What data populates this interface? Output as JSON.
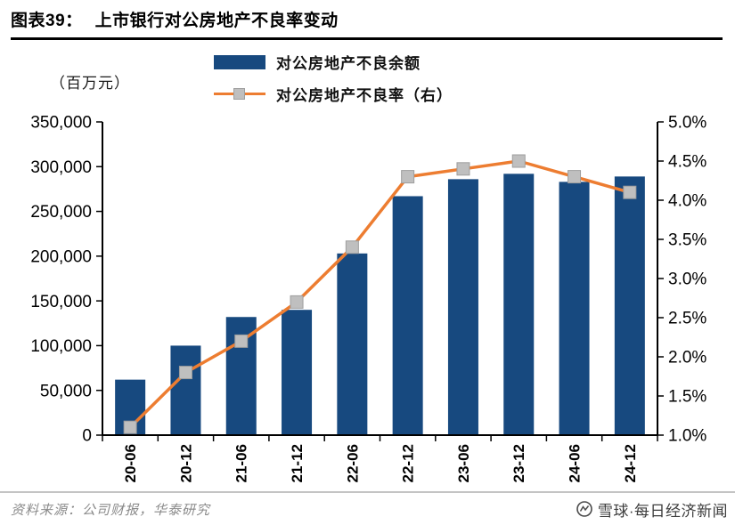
{
  "header": {
    "title_prefix": "图表39：",
    "title_text": "上市银行对公房地产不良率变动"
  },
  "unit_label": "（百万元）",
  "legend": {
    "bar_label": "对公房地产不良余额",
    "line_label": "对公房地产不良率（右）"
  },
  "footer": {
    "source": "资料来源：公司财报，华泰研究",
    "watermark": "雪球·每日经济新闻"
  },
  "colors": {
    "bar": "#17497f",
    "line": "#ed7d31",
    "marker": "#bfbfbf",
    "axis": "#000000"
  },
  "chart_data": {
    "type": "bar",
    "subtype": "bar+line combo, dual axis",
    "title": "上市银行对公房地产不良率变动",
    "categories": [
      "20-06",
      "20-12",
      "21-06",
      "21-12",
      "22-06",
      "22-12",
      "23-06",
      "23-12",
      "24-06",
      "24-12"
    ],
    "series": [
      {
        "name": "对公房地产不良余额",
        "type": "bar",
        "axis": "left",
        "unit": "百万元",
        "values": [
          62000,
          100000,
          132000,
          140000,
          203000,
          267000,
          286000,
          292000,
          283000,
          289000
        ]
      },
      {
        "name": "对公房地产不良率（右）",
        "type": "line",
        "axis": "right",
        "unit": "%",
        "values": [
          1.1,
          1.8,
          2.2,
          2.7,
          3.4,
          4.3,
          4.4,
          4.5,
          4.3,
          4.1
        ]
      }
    ],
    "left_axis": {
      "min": 0,
      "max": 350000,
      "step": 50000,
      "label": "（百万元）"
    },
    "right_axis": {
      "min": 1.0,
      "max": 5.0,
      "step": 0.5,
      "format": "percent"
    },
    "grid": false,
    "legend_position": "top"
  }
}
